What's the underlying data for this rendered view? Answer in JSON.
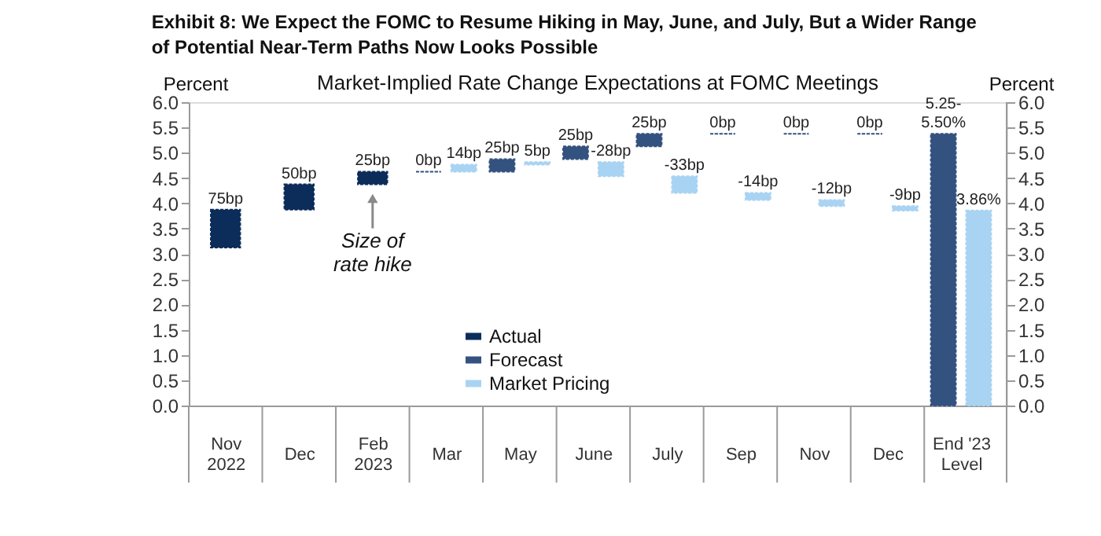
{
  "chart_data": {
    "type": "bar",
    "title": "Exhibit 8: We Expect the FOMC to Resume Hiking in May, June, and July, But a Wider Range of Potential Near-Term Paths Now Looks Possible",
    "subtitle": "Market-Implied Rate Change Expectations at FOMC Meetings",
    "ylabel": "Percent",
    "y2label": "Percent",
    "categories": [
      "Nov\n2022",
      "Dec",
      "Feb\n2023",
      "Mar",
      "May",
      "June",
      "July",
      "Sep",
      "Nov",
      "Dec",
      "End '23\nLevel"
    ],
    "series": [
      {
        "name": "Actual",
        "color": "#0c2d5a",
        "values": [
          0.75,
          0.5,
          0.25,
          null,
          null,
          null,
          null,
          null,
          null,
          null,
          null
        ],
        "base": [
          3.125,
          3.875,
          4.375,
          null,
          null,
          null,
          null,
          null,
          null,
          null,
          null
        ]
      },
      {
        "name": "Forecast",
        "color": "#34527f",
        "values": [
          null,
          null,
          null,
          0,
          0.25,
          0.25,
          0.25,
          0,
          0,
          0,
          5.375
        ],
        "base": [
          null,
          null,
          null,
          4.625,
          4.625,
          4.875,
          5.125,
          5.375,
          5.375,
          5.375,
          0
        ],
        "value_labels": [
          null,
          null,
          null,
          null,
          null,
          null,
          null,
          null,
          null,
          "0bp",
          null
        ]
      },
      {
        "name": "Market Pricing",
        "color": "#a9d3f2",
        "values": [
          null,
          null,
          null,
          0.14,
          0.05,
          -0.28,
          -0.33,
          -0.14,
          -0.12,
          -0.09,
          3.86
        ],
        "base": [
          null,
          null,
          null,
          4.625,
          4.765,
          4.815,
          4.535,
          4.205,
          4.065,
          3.945,
          0
        ],
        "value_labels": [
          null,
          null,
          null,
          null,
          null,
          null,
          null,
          null,
          null,
          null,
          "3.86%"
        ]
      }
    ],
    "ylim": [
      0,
      6
    ],
    "yticks": [
      {
        "value": 0,
        "label": "0.0"
      },
      0.5,
      {
        "value": 1,
        "label": "1.0"
      },
      1.5,
      {
        "value": 2,
        "label": "2.0"
      },
      2.5,
      {
        "value": 3,
        "label": "3.0"
      },
      3.5,
      {
        "value": 4,
        "label": "4.0"
      },
      4.5,
      {
        "value": 5,
        "label": "5.0"
      },
      5.5,
      {
        "value": 6,
        "label": "6.0"
      }
    ],
    "y2lim": [
      0,
      6
    ],
    "y2ticks": [
      {
        "value": 0,
        "label": "0.0"
      },
      0.5,
      {
        "value": 1,
        "label": "1.0"
      },
      1.5,
      {
        "value": 2,
        "label": "2.0"
      },
      2.5,
      {
        "value": 3,
        "label": "3.0"
      },
      3.5,
      {
        "value": 4,
        "label": "4.0"
      },
      4.5,
      {
        "value": 5,
        "label": "5.0"
      },
      5.5,
      {
        "value": 6,
        "label": "6.0"
      }
    ],
    "grid": false,
    "legend": "bottom",
    "annotations": [
      {
        "text": "75bp",
        "x": "Nov\n2022",
        "y": 3.875
      },
      {
        "text": "50bp",
        "x": "Dec",
        "y": 4.375
      },
      {
        "text": "25bp",
        "x": "Feb\n2023",
        "y": 4.625
      },
      {
        "text": "0bp",
        "x": "Mar",
        "y": 4.625
      },
      {
        "text": "14bp",
        "x": "Mar",
        "y": 4.765
      },
      {
        "text": "25bp",
        "x": "May",
        "y": 4.875
      },
      {
        "text": "5bp",
        "x": "May",
        "y": 4.815
      },
      {
        "text": "25bp",
        "x": "June",
        "y": 5.125
      },
      {
        "text": "-28bp",
        "x": "June",
        "y": 4.815
      },
      {
        "text": "25bp",
        "x": "July",
        "y": 5.375
      },
      {
        "text": "-33bp",
        "x": "July",
        "y": 4.535
      },
      {
        "text": "0bp",
        "x": "Sep",
        "y": 5.375
      },
      {
        "text": "-14bp",
        "x": "Sep",
        "y": 4.205
      },
      {
        "text": "0bp",
        "x": "Nov",
        "y": 5.375
      },
      {
        "text": "-12bp",
        "x": "Nov",
        "y": 4.065
      },
      {
        "text": "-9bp",
        "y": 3.945
      },
      {
        "text": "5.25-\n5.50%",
        "x": "End '23\nLevel",
        "y": 5.375
      },
      {
        "text": "Size of\nrate hike",
        "x": "Feb\n2023",
        "y": 4.375
      }
    ]
  }
}
